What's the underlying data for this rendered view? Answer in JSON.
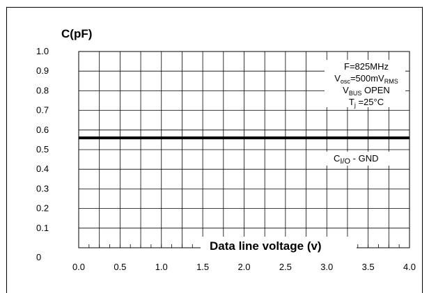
{
  "chart_data": {
    "type": "line",
    "ylabel": "C(pF)",
    "xlabel": "Data line voltage (v)",
    "x_ticks": [
      "0.0",
      "0.5",
      "1.0",
      "1.5",
      "2.0",
      "2.5",
      "3.0",
      "3.5",
      "4.0"
    ],
    "y_ticks": [
      "0",
      "0.1",
      "0.2",
      "0.3",
      "0.4",
      "0.5",
      "0.6",
      "0.7",
      "0.8",
      "0.9",
      "1.0"
    ],
    "xlim": [
      0,
      4
    ],
    "ylim": [
      0,
      1
    ],
    "grid": true,
    "x_minor_per_major": 2,
    "series": [
      {
        "name": "CI/O - GND",
        "name_main": "C",
        "name_sub": "I/O",
        "name_rest": " - GND",
        "color": "#000000",
        "x": [
          0.0,
          0.5,
          1.0,
          1.5,
          2.0,
          2.5,
          3.0,
          3.5,
          4.0
        ],
        "y": [
          0.56,
          0.56,
          0.56,
          0.56,
          0.56,
          0.56,
          0.56,
          0.56,
          0.56
        ]
      }
    ],
    "conditions": [
      {
        "main": "F=825MHz",
        "sub": "",
        "rest": "",
        "sub2": ""
      },
      {
        "main": "V",
        "sub": "osc",
        "rest": "=500mV",
        "sub2": "RMS"
      },
      {
        "main": "V",
        "sub": "BUS",
        "rest": " OPEN",
        "sub2": ""
      },
      {
        "main": "T",
        "sub": "j",
        "rest": " =25°C",
        "sub2": ""
      }
    ]
  }
}
